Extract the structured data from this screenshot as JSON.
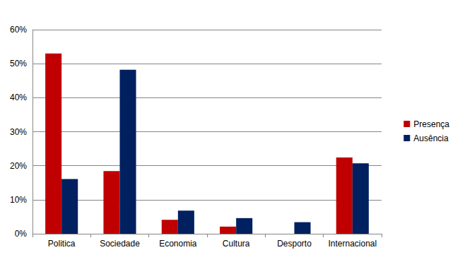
{
  "chart_data": {
    "type": "bar",
    "categories": [
      "Politica",
      "Sociedade",
      "Economia",
      "Cultura",
      "Desporto",
      "Internacional"
    ],
    "series": [
      {
        "name": "Presença",
        "color": "#C00000",
        "values": [
          53.0,
          18.4,
          4.1,
          2.1,
          0,
          22.4
        ]
      },
      {
        "name": "Ausência",
        "color": "#002060",
        "values": [
          16.1,
          48.2,
          6.8,
          4.6,
          3.4,
          20.7
        ]
      }
    ],
    "ylim": [
      0,
      60
    ],
    "yticks": [
      {
        "value": 0,
        "label": "0%"
      },
      {
        "value": 10,
        "label": "10%"
      },
      {
        "value": 20,
        "label": "20%"
      },
      {
        "value": 30,
        "label": "30%"
      },
      {
        "value": 40,
        "label": "40%"
      },
      {
        "value": 50,
        "label": "50%"
      },
      {
        "value": 60,
        "label": "60%"
      }
    ],
    "grid": true,
    "legend": "right"
  }
}
